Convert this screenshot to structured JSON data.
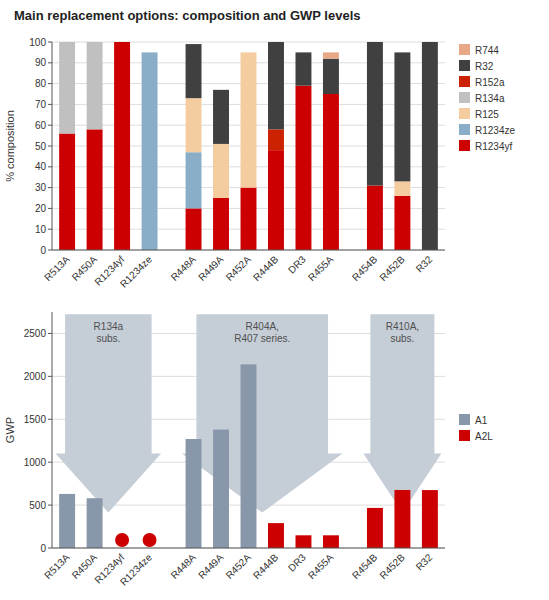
{
  "chart_data": [
    {
      "type": "bar",
      "stacked": true,
      "title": "Main replacement options: composition and GWP levels",
      "y_label": "% composition",
      "categories": [
        "R513A",
        "R450A",
        "R1234yf",
        "R1234ze",
        "R448A",
        "R449A",
        "R452A",
        "R444B",
        "DR3",
        "R455A",
        "R454B",
        "R452B",
        "R32"
      ],
      "series": [
        {
          "name": "R1234yf",
          "color": "#cc0000",
          "values": [
            56,
            58,
            100,
            0,
            20,
            25,
            30,
            48,
            79,
            75,
            31,
            26,
            0
          ]
        },
        {
          "name": "R1234ze",
          "color": "#8aaec8",
          "values": [
            0,
            0,
            0,
            95,
            27,
            0,
            0,
            0,
            0,
            0,
            0,
            0,
            0
          ]
        },
        {
          "name": "R125",
          "color": "#f5cba0",
          "values": [
            0,
            0,
            0,
            0,
            26,
            26,
            65,
            0,
            0,
            0,
            0,
            7,
            0
          ]
        },
        {
          "name": "R134a",
          "color": "#c0c0c0",
          "values": [
            44,
            42,
            0,
            0,
            0,
            0,
            0,
            0,
            0,
            0,
            0,
            0,
            0
          ]
        },
        {
          "name": "R152a",
          "color": "#cc2200",
          "values": [
            0,
            0,
            0,
            0,
            0,
            0,
            0,
            10,
            0,
            0,
            0,
            0,
            0
          ]
        },
        {
          "name": "R32",
          "color": "#404040",
          "values": [
            0,
            0,
            0,
            0,
            26,
            26,
            0,
            42,
            16,
            17,
            69,
            62,
            100
          ]
        },
        {
          "name": "R744",
          "color": "#e8a888",
          "values": [
            0,
            0,
            0,
            0,
            0,
            0,
            0,
            0,
            0,
            3,
            0,
            0,
            0
          ]
        }
      ],
      "ylim": [
        0,
        100
      ],
      "yticks": [
        0,
        10,
        20,
        30,
        40,
        50,
        60,
        70,
        80,
        90,
        100
      ],
      "grid": true,
      "legend": "right"
    },
    {
      "type": "bar",
      "stacked": true,
      "y_label": "GWP",
      "categories": [
        "R513A",
        "R450A",
        "R1234yf",
        "R1234ze",
        "R448A",
        "R449A",
        "R452A",
        "R444B",
        "DR3",
        "R455A",
        "R454B",
        "R452B",
        "R32"
      ],
      "series": [
        {
          "name": "A1",
          "color": "#8898aa",
          "values": [
            630,
            580,
            0,
            0,
            1270,
            1380,
            2140,
            0,
            0,
            0,
            0,
            0,
            0
          ]
        },
        {
          "name": "A2L",
          "color": "#cc0000",
          "values": [
            0,
            0,
            1,
            1,
            0,
            0,
            0,
            290,
            148,
            148,
            467,
            676,
            675
          ]
        }
      ],
      "ylim": [
        0,
        2750
      ],
      "yticks": [
        0,
        500,
        1000,
        1500,
        2000,
        2500
      ],
      "grid": true,
      "legend": "right",
      "annotations": [
        {
          "text": "R134a\nsubs.",
          "categories": [
            "R513A",
            "R450A",
            "R1234yf",
            "R1234ze"
          ]
        },
        {
          "text": "R404A,\nR407 series.",
          "categories": [
            "R448A",
            "R449A",
            "R452A",
            "R444B",
            "DR3",
            "R455A"
          ]
        },
        {
          "text": "R410A,\nsubs.",
          "categories": [
            "R454B",
            "R452B",
            "R32"
          ]
        }
      ]
    }
  ]
}
